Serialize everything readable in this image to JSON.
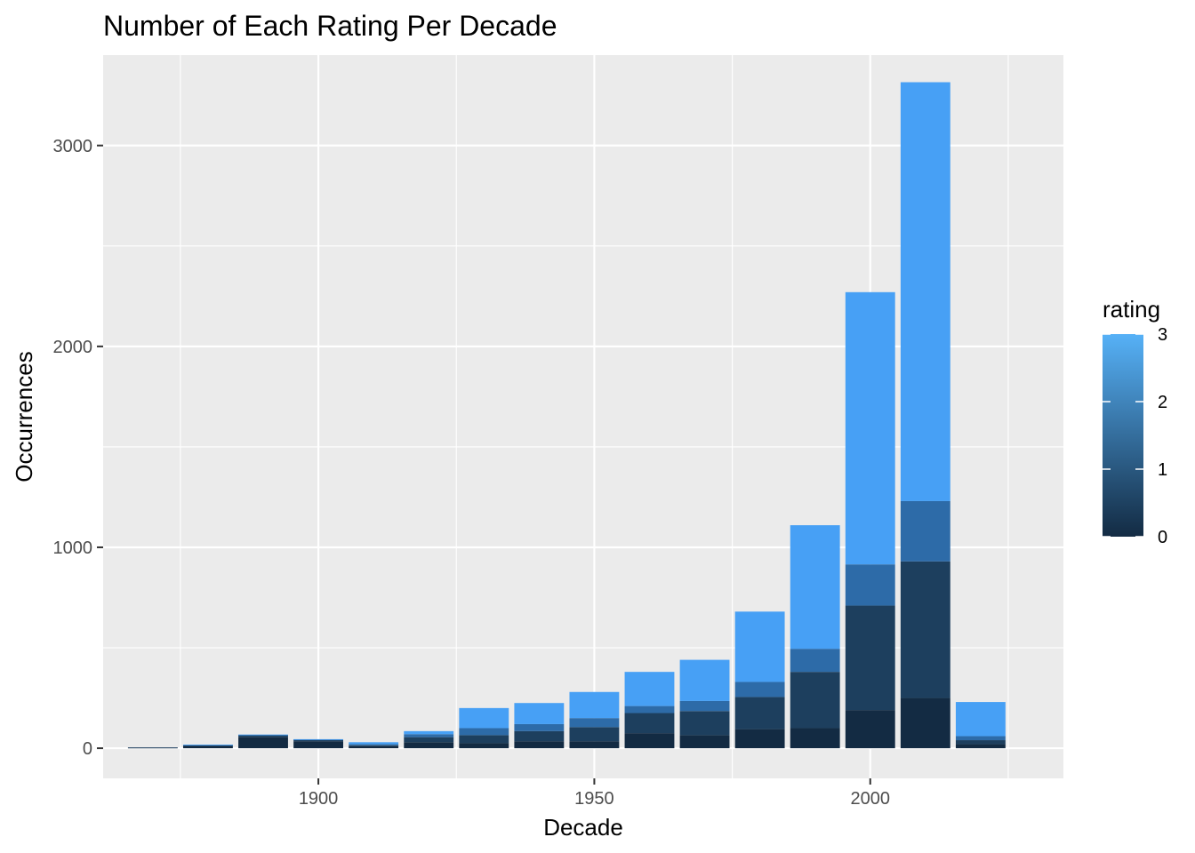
{
  "chart_data": {
    "type": "bar",
    "stacked": true,
    "title": "Number of Each Rating Per Decade",
    "xlabel": "Decade",
    "ylabel": "Occurrences",
    "x": [
      1870,
      1880,
      1890,
      1900,
      1910,
      1920,
      1930,
      1940,
      1950,
      1960,
      1970,
      1980,
      1990,
      2000,
      2010,
      2020
    ],
    "xlim": [
      1861,
      2035
    ],
    "ylim": [
      -150,
      3450
    ],
    "x_ticks": [
      1900,
      1950,
      2000
    ],
    "x_tick_labels": [
      "1900",
      "1950",
      "2000"
    ],
    "y_ticks": [
      0,
      1000,
      2000,
      3000
    ],
    "y_tick_labels": [
      "0",
      "1000",
      "2000",
      "3000"
    ],
    "grid": true,
    "legend": {
      "title": "rating",
      "placement": "right",
      "type": "colorbar",
      "range": [
        0,
        3
      ],
      "ticks": [
        0,
        1,
        2,
        3
      ],
      "tick_labels": [
        "0",
        "1",
        "2",
        "3"
      ]
    },
    "series": [
      {
        "rating": 0,
        "color": "#132B43",
        "values": [
          3,
          12,
          55,
          35,
          10,
          30,
          25,
          35,
          35,
          75,
          65,
          95,
          100,
          190,
          250,
          20
        ]
      },
      {
        "rating": 1,
        "color": "#1D3F5E",
        "values": [
          1,
          4,
          10,
          8,
          5,
          25,
          40,
          50,
          70,
          100,
          120,
          160,
          280,
          520,
          680,
          20
        ]
      },
      {
        "rating": 2,
        "color": "#2D6BA8",
        "values": [
          0,
          1,
          2,
          1,
          5,
          15,
          35,
          35,
          45,
          35,
          50,
          75,
          115,
          205,
          300,
          20
        ]
      },
      {
        "rating": 3,
        "color": "#47A0F5",
        "values": [
          0,
          1,
          1,
          1,
          10,
          15,
          100,
          105,
          130,
          170,
          205,
          350,
          615,
          1355,
          2085,
          170
        ]
      }
    ]
  }
}
